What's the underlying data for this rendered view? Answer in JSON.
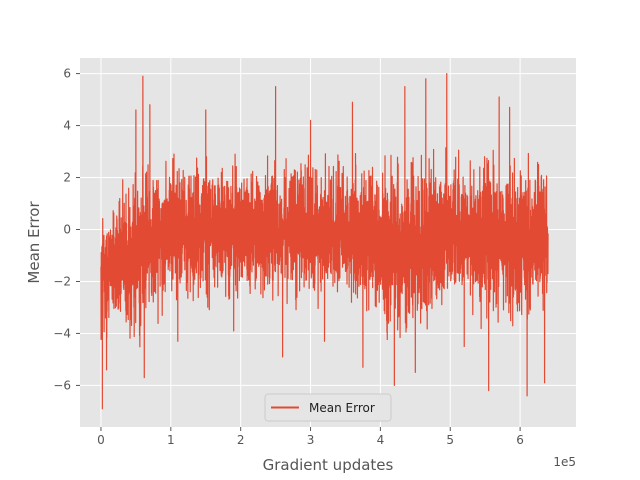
{
  "chart_data": {
    "type": "line",
    "xlabel": "Gradient updates",
    "ylabel": "Mean Error",
    "x_offset_label": "1e5",
    "xlim": [
      -0.3,
      6.8
    ],
    "ylim": [
      -7.6,
      6.6
    ],
    "x_ticks": [
      0,
      1,
      2,
      3,
      4,
      5,
      6
    ],
    "x_tick_labels": [
      "0",
      "1",
      "2",
      "3",
      "4",
      "5",
      "6"
    ],
    "y_ticks": [
      -6,
      -4,
      -2,
      0,
      2,
      4,
      6
    ],
    "y_tick_labels": [
      "−6",
      "−4",
      "−2",
      "0",
      "2",
      "4",
      "6"
    ],
    "grid": true,
    "legend": {
      "position": "lower center",
      "entries": [
        "Mean Error"
      ]
    },
    "colors": {
      "series": "#e24a33",
      "axes_bg": "#e5e5e5",
      "grid": "#ffffff",
      "text": "#555555"
    },
    "series": [
      {
        "name": "Mean Error",
        "x_range": [
          0,
          6.4
        ],
        "envelope": {
          "x": [
            0,
            0.05,
            0.1,
            0.15,
            0.2,
            0.25,
            0.3,
            0.35,
            0.4,
            0.5,
            0.6,
            0.8,
            1.0,
            1.5,
            2.0,
            2.5,
            3.0,
            3.5,
            3.9,
            4.0,
            4.1,
            4.3,
            4.5,
            4.8,
            5.0,
            5.3,
            5.5,
            5.8,
            6.0,
            6.2,
            6.4
          ],
          "upper": [
            2.6,
            2.4,
            2.0,
            1.8,
            1.5,
            1.6,
            2.0,
            2.5,
            2.8,
            3.0,
            3.2,
            3.3,
            3.2,
            3.3,
            3.3,
            3.2,
            3.3,
            3.3,
            3.4,
            3.4,
            3.5,
            3.6,
            3.6,
            3.5,
            3.6,
            3.5,
            3.6,
            3.5,
            3.5,
            3.4,
            3.3
          ],
          "lower": [
            -6.0,
            -5.2,
            -4.8,
            -4.2,
            -3.6,
            -3.8,
            -4.4,
            -4.8,
            -4.8,
            -4.7,
            -4.4,
            -4.0,
            -3.6,
            -3.4,
            -3.4,
            -3.5,
            -3.4,
            -3.5,
            -4.0,
            -4.7,
            -4.9,
            -4.9,
            -4.8,
            -4.2,
            -3.6,
            -3.8,
            -4.3,
            -4.4,
            -4.3,
            -4.2,
            -4.0
          ]
        },
        "spikes": [
          {
            "x": 0.02,
            "y": -6.9
          },
          {
            "x": 0.08,
            "y": -5.4
          },
          {
            "x": 0.5,
            "y": 4.6
          },
          {
            "x": 0.6,
            "y": 5.9
          },
          {
            "x": 0.62,
            "y": -5.7
          },
          {
            "x": 0.7,
            "y": 4.8
          },
          {
            "x": 1.1,
            "y": -4.3
          },
          {
            "x": 1.5,
            "y": 4.6
          },
          {
            "x": 1.9,
            "y": -3.9
          },
          {
            "x": 2.5,
            "y": 5.5
          },
          {
            "x": 2.6,
            "y": -4.9
          },
          {
            "x": 3.0,
            "y": 4.2
          },
          {
            "x": 3.2,
            "y": -4.3
          },
          {
            "x": 3.6,
            "y": 4.9
          },
          {
            "x": 3.75,
            "y": -5.3
          },
          {
            "x": 4.2,
            "y": -6.0
          },
          {
            "x": 4.35,
            "y": 5.5
          },
          {
            "x": 4.5,
            "y": -5.5
          },
          {
            "x": 4.65,
            "y": 5.8
          },
          {
            "x": 4.95,
            "y": 6.0
          },
          {
            "x": 5.2,
            "y": -4.5
          },
          {
            "x": 5.55,
            "y": -6.2
          },
          {
            "x": 5.7,
            "y": 5.1
          },
          {
            "x": 5.85,
            "y": 4.7
          },
          {
            "x": 6.1,
            "y": -6.4
          },
          {
            "x": 6.35,
            "y": -5.9
          }
        ]
      }
    ]
  }
}
